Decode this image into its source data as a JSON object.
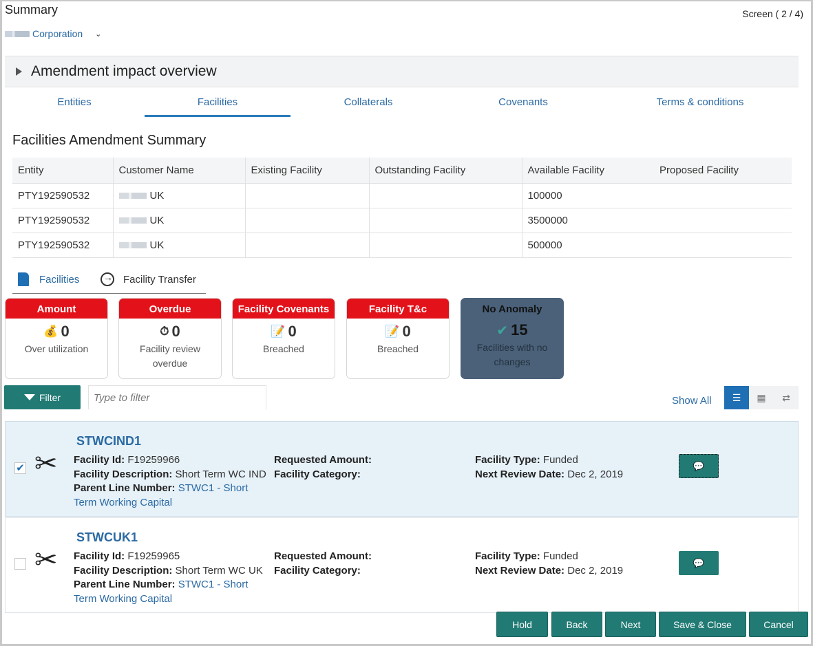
{
  "header": {
    "title": "Summary",
    "screen_count": "Screen ( 2 / 4)",
    "corporation": "Corporation"
  },
  "amendment": {
    "title": "Amendment impact overview"
  },
  "tabs": [
    {
      "label": "Entities"
    },
    {
      "label": "Facilities"
    },
    {
      "label": "Collaterals"
    },
    {
      "label": "Covenants"
    },
    {
      "label": "Terms & conditions"
    }
  ],
  "summary": {
    "title": "Facilities Amendment Summary",
    "columns": [
      "Entity",
      "Customer Name",
      "Existing Facility",
      "Outstanding Facility",
      "Available Facility",
      "Proposed Facility"
    ],
    "rows": [
      {
        "entity": "PTY192590532",
        "customer": "UK",
        "existing": "",
        "outstanding": "",
        "available": "100000",
        "proposed": ""
      },
      {
        "entity": "PTY192590532",
        "customer": "UK",
        "existing": "",
        "outstanding": "",
        "available": "3500000",
        "proposed": ""
      },
      {
        "entity": "PTY192590532",
        "customer": "UK",
        "existing": "",
        "outstanding": "",
        "available": "500000",
        "proposed": ""
      }
    ]
  },
  "subtabs": {
    "facilities": "Facilities",
    "transfer": "Facility Transfer"
  },
  "cards": [
    {
      "header": "Amount",
      "value": "0",
      "label": "Over utilization",
      "icon": "money-bag-icon"
    },
    {
      "header": "Overdue",
      "value": "0",
      "label": "Facility review overdue",
      "icon": "stopwatch-icon"
    },
    {
      "header": "Facility Covenants",
      "value": "0",
      "label": "Breached",
      "icon": "document-edit-icon"
    },
    {
      "header": "Facility T&c",
      "value": "0",
      "label": "Breached",
      "icon": "document-edit-icon"
    },
    {
      "header": "No Anomaly",
      "value": "15",
      "label": "Facilities with no changes",
      "icon": "check-icon"
    }
  ],
  "filter": {
    "button_label": "Filter",
    "placeholder": "Type to filter",
    "show_all": "Show All"
  },
  "facilities": [
    {
      "name": "STWCIND1",
      "facility_id_label": "Facility Id:",
      "facility_id": "F19259966",
      "description_label": "Facility Description:",
      "description": "Short Term WC IND",
      "parent_label": "Parent Line Number:",
      "parent": "STWC1 - Short Term Working Capital",
      "requested_label": "Requested Amount:",
      "requested": "",
      "category_label": "Facility Category:",
      "category": "",
      "type_label": "Facility Type:",
      "type": "Funded",
      "review_label": "Next Review Date:",
      "review": "Dec 2, 2019",
      "checked": true
    },
    {
      "name": "STWCUK1",
      "facility_id_label": "Facility Id:",
      "facility_id": "F19259965",
      "description_label": "Facility Description:",
      "description": "Short Term WC UK",
      "parent_label": "Parent Line Number:",
      "parent": "STWC1 - Short Term Working Capital",
      "requested_label": "Requested Amount:",
      "requested": "",
      "category_label": "Facility Category:",
      "category": "",
      "type_label": "Facility Type:",
      "type": "Funded",
      "review_label": "Next Review Date:",
      "review": "Dec 2, 2019",
      "checked": false
    }
  ],
  "footer": {
    "hold": "Hold",
    "back": "Back",
    "next": "Next",
    "save_close": "Save & Close",
    "cancel": "Cancel"
  },
  "colors": {
    "accent_teal": "#217a74",
    "link_blue": "#2b6aa3",
    "alert_red": "#e3121a",
    "no_anomaly_bg": "#4a6179"
  }
}
